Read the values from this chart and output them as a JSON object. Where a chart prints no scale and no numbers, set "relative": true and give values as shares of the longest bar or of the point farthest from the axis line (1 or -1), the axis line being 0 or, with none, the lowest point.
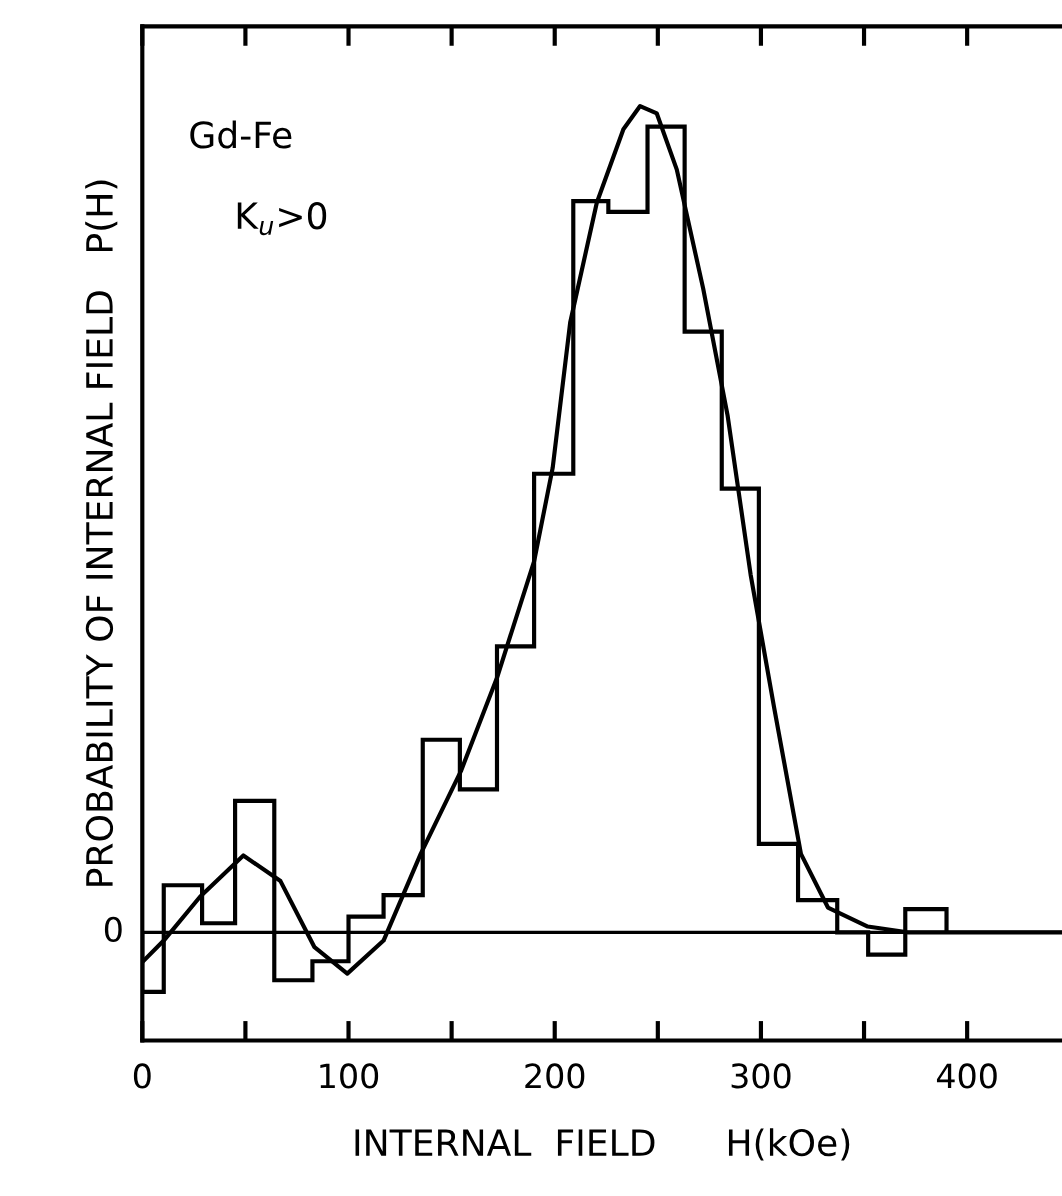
{
  "chart_data": {
    "type": "histogram",
    "relative": true,
    "xlabel": "INTERNAL  FIELD      H(kOe)",
    "ylabel": "PROBABILITY OF INTERNAL FIELD   P(H)",
    "annotations": [
      "Gd-Fe",
      "K$_{u}$>0"
    ],
    "xlim": [
      0,
      446
    ],
    "xticks": [
      0,
      100,
      200,
      300,
      400
    ],
    "ref_lines": [
      {
        "axis": "y",
        "value": 0,
        "label": "0",
        "color": "#000000"
      }
    ],
    "grid": false,
    "legend": false,
    "series": [
      {
        "color": "#000000",
        "bins": [
          0,
          10.4,
          29,
          45,
          64,
          82.5,
          100,
          117,
          136,
          154,
          172,
          190,
          209,
          226,
          245,
          263,
          281,
          299,
          318,
          337,
          352,
          370,
          390
        ],
        "values": [
          -0.072,
          0.057,
          0.011,
          0.159,
          -0.058,
          -0.035,
          0.019,
          0.045,
          0.233,
          0.173,
          0.346,
          0.555,
          0.885,
          0.872,
          0.975,
          0.727,
          0.537,
          0.107,
          0.039,
          0,
          -0.027,
          0.028
        ]
      },
      {
        "type": "line",
        "color": "#000000",
        "x": [
          0,
          10.4,
          28,
          49,
          67,
          83.5,
          99.4,
          117,
          135,
          154.5,
          172,
          190,
          199,
          207.5,
          220.4,
          233.3,
          241.4,
          249.5,
          259.2,
          272,
          283.8,
          295,
          306.4,
          319.4,
          332.5,
          351.8,
          371,
          446
        ],
        "values": [
          -0.036,
          -0.01,
          0.043,
          0.093,
          0.062,
          -0.018,
          -0.05,
          -0.01,
          0.095,
          0.195,
          0.308,
          0.449,
          0.562,
          0.738,
          0.883,
          0.972,
          1.0,
          0.991,
          0.923,
          0.779,
          0.626,
          0.433,
          0.272,
          0.095,
          0.03,
          0.007,
          0,
          0
        ]
      }
    ]
  }
}
